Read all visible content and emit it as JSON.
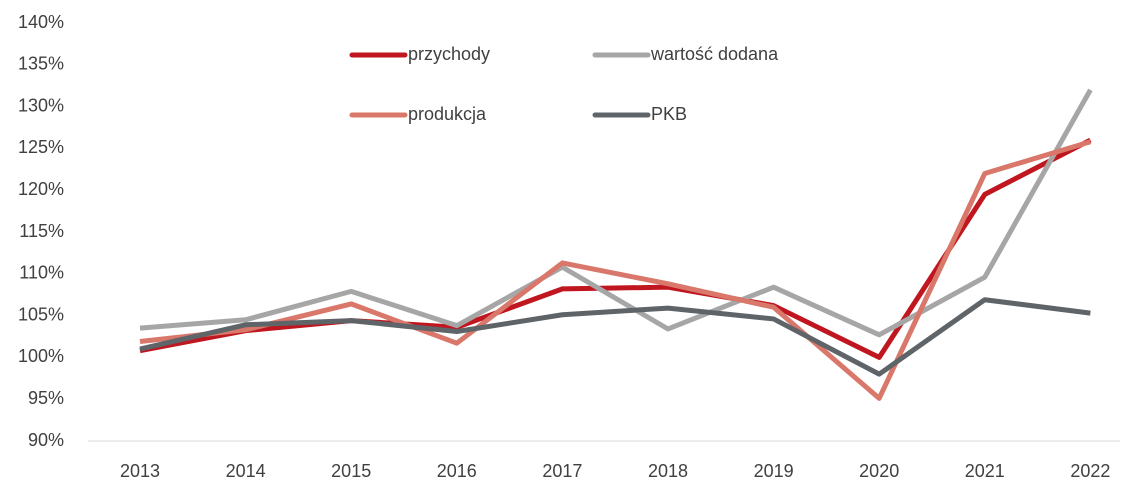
{
  "chart_data": {
    "type": "line",
    "categories": [
      "2013",
      "2014",
      "2015",
      "2016",
      "2017",
      "2018",
      "2019",
      "2020",
      "2021",
      "2022"
    ],
    "series": [
      {
        "name": "przychody",
        "color": "#c0161f",
        "values": [
          100.8,
          103.2,
          104.4,
          103.6,
          108.2,
          108.4,
          106.2,
          100.0,
          119.5,
          126.0
        ]
      },
      {
        "name": "wartość dodana",
        "color": "#a6a6a6",
        "values": [
          103.5,
          104.5,
          107.9,
          103.8,
          110.8,
          103.4,
          108.4,
          102.7,
          109.6,
          132.0
        ]
      },
      {
        "name": "produkcja",
        "color": "#d9776a",
        "values": [
          101.9,
          103.3,
          106.4,
          101.7,
          111.3,
          108.8,
          106.0,
          95.1,
          122.0,
          125.8
        ]
      },
      {
        "name": "PKB",
        "color": "#5f6468",
        "values": [
          101.0,
          103.9,
          104.4,
          103.1,
          105.1,
          105.9,
          104.6,
          98.0,
          106.9,
          105.3
        ]
      }
    ],
    "ylim": [
      90,
      140
    ],
    "yticks": [
      {
        "value": 90,
        "label": "90%"
      },
      {
        "value": 95,
        "label": "95%"
      },
      {
        "value": 100,
        "label": "100%"
      },
      {
        "value": 105,
        "label": "105%"
      },
      {
        "value": 110,
        "label": "110%"
      },
      {
        "value": 115,
        "label": "115%"
      },
      {
        "value": 120,
        "label": "120%"
      },
      {
        "value": 125,
        "label": "125%"
      },
      {
        "value": 130,
        "label": "130%"
      },
      {
        "value": 135,
        "label": "135%"
      },
      {
        "value": 140,
        "label": "140%"
      }
    ],
    "grid": false,
    "legend": "top"
  }
}
